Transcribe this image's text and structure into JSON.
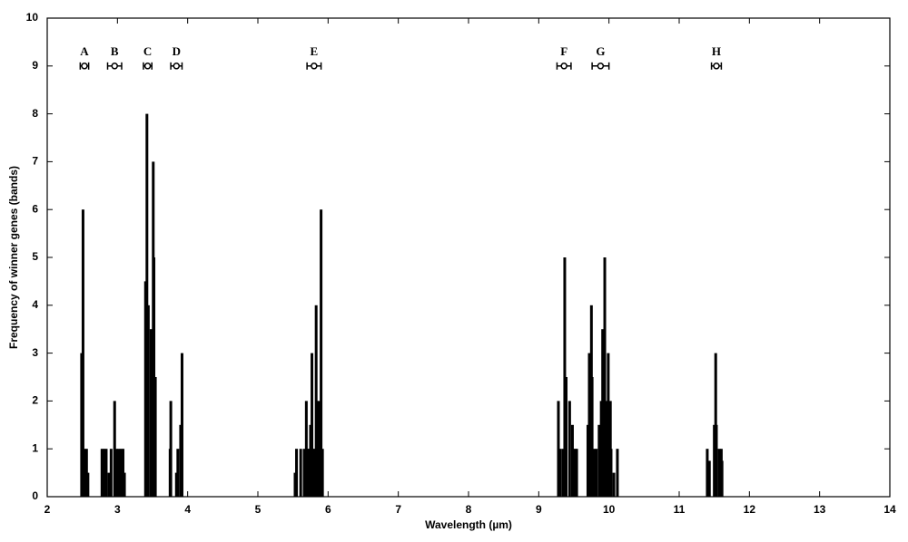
{
  "chart_data": {
    "type": "bar",
    "xlabel": "Wavelength (µm)",
    "ylabel": "Frequency of winner genes (bands)",
    "x": [
      2.49,
      2.51,
      2.53,
      2.56,
      2.58,
      2.78,
      2.81,
      2.84,
      2.88,
      2.91,
      2.96,
      2.99,
      3.02,
      3.05,
      3.08,
      3.1,
      3.4,
      3.42,
      3.44,
      3.48,
      3.51,
      3.52,
      3.54,
      3.75,
      3.76,
      3.84,
      3.86,
      3.9,
      3.92,
      5.53,
      5.55,
      5.61,
      5.66,
      5.69,
      5.71,
      5.73,
      5.75,
      5.77,
      5.79,
      5.81,
      5.83,
      5.85,
      5.87,
      5.9,
      5.92,
      9.28,
      9.31,
      9.35,
      9.37,
      9.39,
      9.44,
      9.48,
      9.49,
      9.52,
      9.54,
      9.7,
      9.72,
      9.75,
      9.76,
      9.79,
      9.82,
      9.86,
      9.89,
      9.91,
      9.94,
      9.97,
      9.99,
      10.02,
      10.03,
      10.07,
      10.12,
      11.4,
      11.41,
      11.43,
      11.5,
      11.52,
      11.53,
      11.57,
      11.6,
      11.61
    ],
    "values": [
      3,
      6,
      1,
      1,
      0.5,
      1,
      1,
      1,
      0.5,
      1,
      2,
      1,
      1,
      1,
      1,
      0.5,
      4.5,
      8,
      4,
      3.5,
      7,
      5,
      2.5,
      1,
      2,
      0.5,
      1,
      1.5,
      3,
      0.5,
      1,
      1,
      1,
      2,
      1,
      1,
      1.5,
      3,
      1,
      1,
      4,
      2,
      2,
      6,
      1,
      2,
      1,
      1,
      5,
      2.5,
      2,
      1.5,
      1,
      1,
      1,
      1.5,
      3,
      4,
      2.5,
      1,
      1,
      1.5,
      2,
      3.5,
      5,
      2,
      3,
      2,
      1,
      0.5,
      1,
      1,
      0.5,
      0.75,
      1.5,
      3,
      1.5,
      1,
      1,
      0.75
    ],
    "color": "#000000",
    "ranges": {
      "y": 9,
      "labels": [
        "A",
        "B",
        "C",
        "D",
        "E",
        "F",
        "G",
        "H"
      ],
      "centers": [
        2.53,
        2.96,
        3.43,
        3.84,
        5.8,
        9.36,
        9.88,
        11.53
      ],
      "errors": [
        0.06,
        0.1,
        0.06,
        0.08,
        0.1,
        0.1,
        0.12,
        0.07
      ]
    },
    "xlim": [
      2,
      14
    ],
    "xticks": [
      2,
      3,
      4,
      5,
      6,
      7,
      8,
      9,
      10,
      11,
      12,
      13,
      14
    ],
    "ylim": [
      0,
      10
    ],
    "yticks": [
      0,
      1,
      2,
      3,
      4,
      5,
      6,
      7,
      8,
      9,
      10
    ]
  }
}
